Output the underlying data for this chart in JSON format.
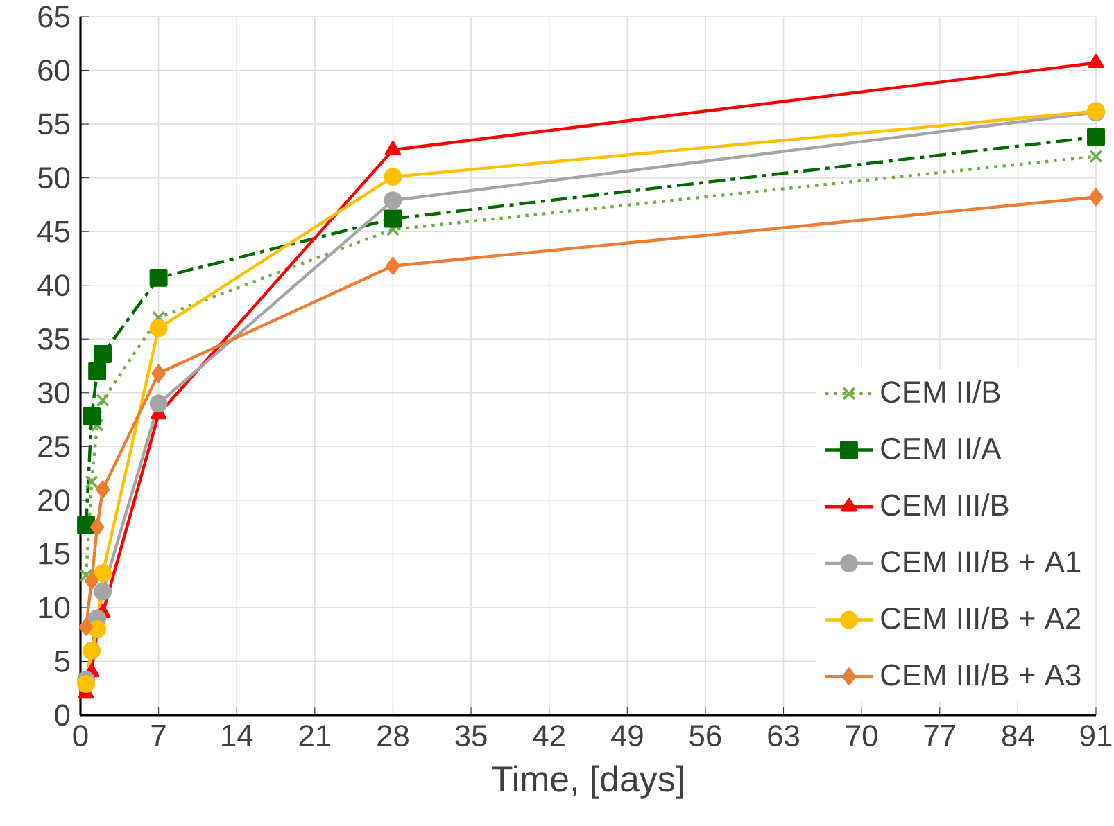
{
  "chart_data": {
    "type": "line",
    "xlabel": "Time, [days]",
    "x": [
      0.5,
      1,
      1.5,
      2,
      7,
      28,
      91
    ],
    "xlim": [
      0,
      91
    ],
    "xticks": [
      0,
      7,
      14,
      21,
      28,
      35,
      42,
      49,
      56,
      63,
      70,
      77,
      84,
      91
    ],
    "ylim": [
      0,
      65
    ],
    "yticks": [
      0,
      5,
      10,
      15,
      20,
      25,
      30,
      35,
      40,
      45,
      50,
      55,
      60,
      65
    ],
    "grid": true,
    "legend": "bottom right",
    "series": [
      {
        "name": "CEM II/B",
        "color": "#70ad47",
        "marker": "cross",
        "line_style": "dotted",
        "values": [
          13,
          21.7,
          27,
          29.3,
          37,
          45.2,
          52
        ]
      },
      {
        "name": "CEM II/A",
        "color": "#006a00",
        "marker": "square",
        "line_style": "dashdot",
        "values": [
          17.7,
          27.8,
          32,
          33.6,
          40.7,
          46.2,
          53.8
        ]
      },
      {
        "name": "CEM III/B",
        "color": "#ff0000",
        "marker": "triangle",
        "line_style": "solid",
        "values": [
          2,
          4,
          8,
          9.5,
          28,
          52.6,
          60.7
        ]
      },
      {
        "name": "CEM III/B + A1",
        "color": "#a5a5a5",
        "marker": "circle",
        "line_style": "solid",
        "values": [
          3.3,
          6,
          9,
          11.5,
          29,
          47.9,
          56.1
        ]
      },
      {
        "name": "CEM III/B + A2",
        "color": "#ffc000",
        "marker": "circle",
        "line_style": "solid",
        "values": [
          2.9,
          6,
          8,
          13.2,
          36,
          50.1,
          56.2
        ]
      },
      {
        "name": "CEM III/B + A3",
        "color": "#ed7d31",
        "marker": "diamond",
        "line_style": "solid",
        "values": [
          8.2,
          12.5,
          17.5,
          21,
          31.8,
          41.8,
          48.2
        ]
      }
    ]
  }
}
